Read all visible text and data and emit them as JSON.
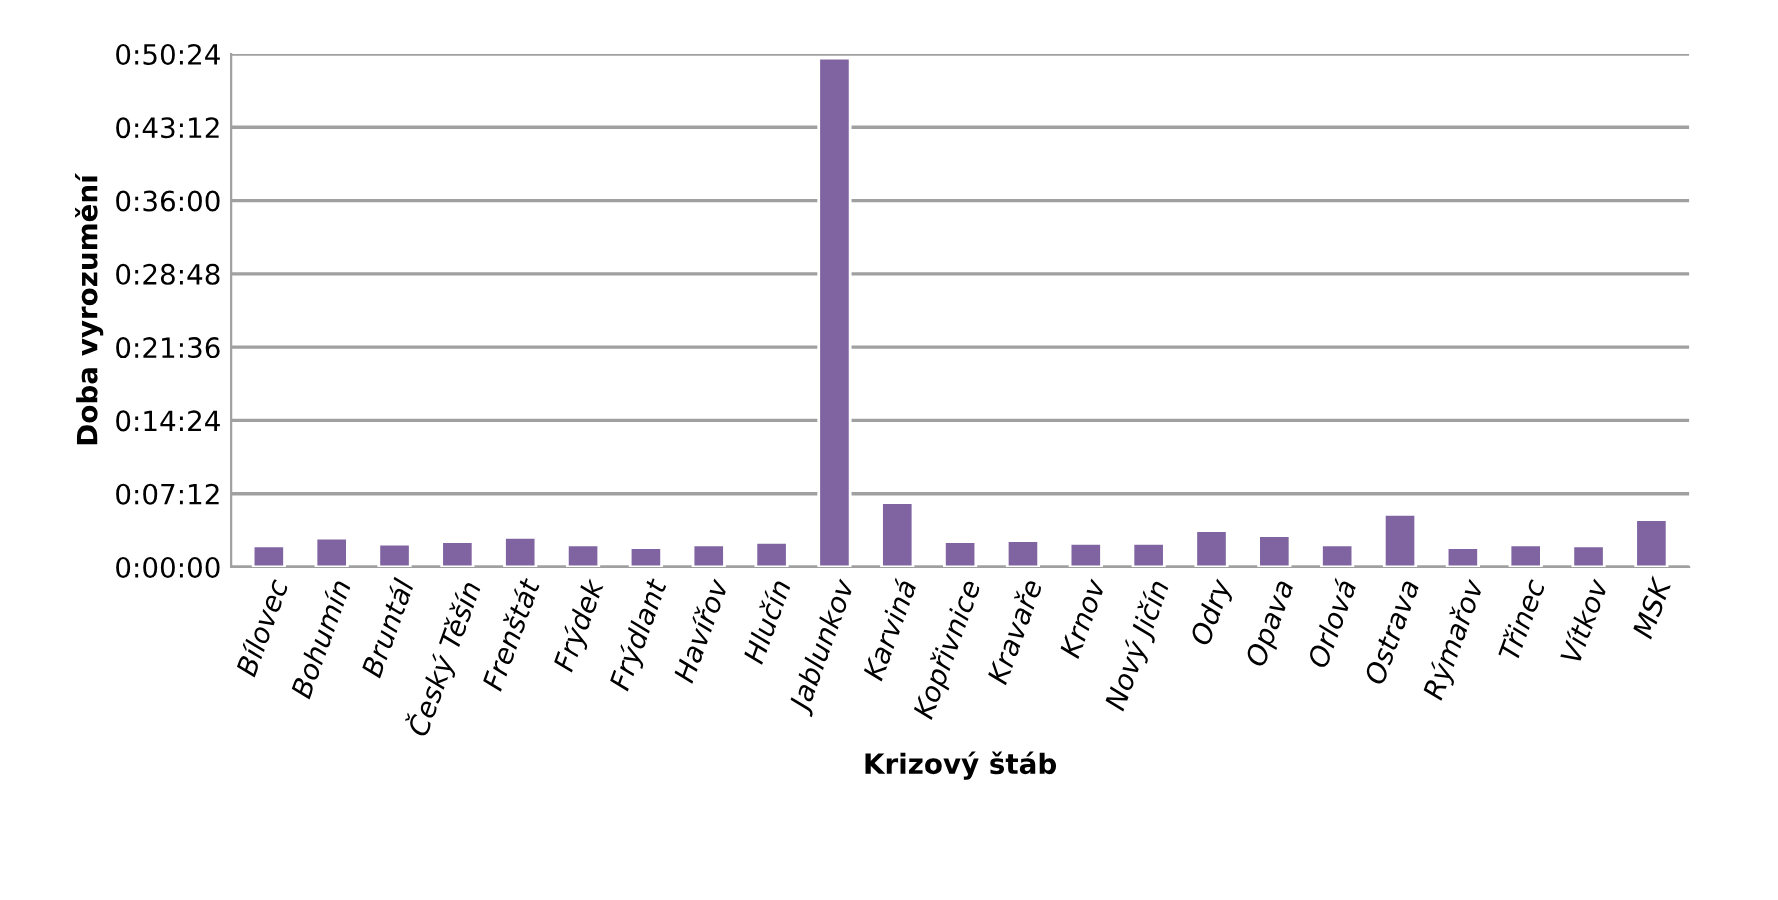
{
  "chart_data": {
    "type": "bar",
    "xlabel": "Krizový štáb",
    "ylabel": "Doba vyrozumění",
    "categories": [
      "Bílovec",
      "Bohumín",
      "Bruntál",
      "Český Těšín",
      "Frenštát",
      "Frýdek",
      "Frýdlant",
      "Havířov",
      "Hlučín",
      "Jablunkov",
      "Karviná",
      "Kopřivnice",
      "Kravaře",
      "Krnov",
      "Nový Jičín",
      "Odry",
      "Opava",
      "Orlová",
      "Ostrava",
      "Rýmařov",
      "Třinec",
      "Vítkov",
      "MSK"
    ],
    "values": [
      125,
      170,
      135,
      150,
      175,
      130,
      115,
      130,
      145,
      3000,
      380,
      150,
      155,
      140,
      140,
      215,
      185,
      130,
      310,
      115,
      130,
      125,
      280
    ],
    "color": "#8064a2",
    "ylim": [
      0,
      3024
    ],
    "yticks": [
      {
        "value": 0,
        "label": "0:00:00"
      },
      {
        "value": 432,
        "label": "0:07:12"
      },
      {
        "value": 864,
        "label": "0:14:24"
      },
      {
        "value": 1296,
        "label": "0:21:36"
      },
      {
        "value": 1728,
        "label": "0:28:48"
      },
      {
        "value": 2160,
        "label": "0:36:00"
      },
      {
        "value": 2592,
        "label": "0:43:12"
      },
      {
        "value": 3024,
        "label": "0:50:24"
      }
    ],
    "grid": "y"
  }
}
